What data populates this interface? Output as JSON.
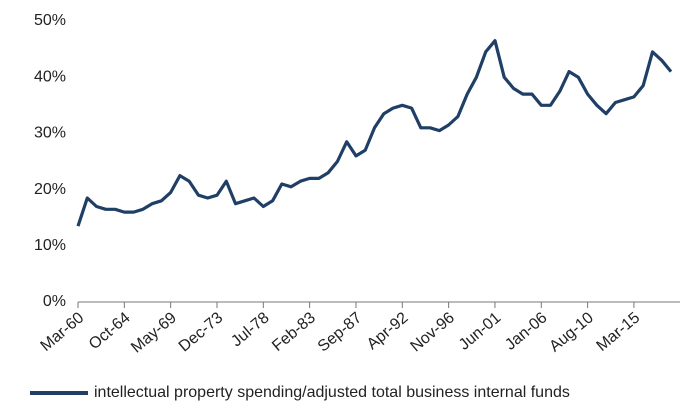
{
  "chart_data": {
    "type": "line",
    "categories": [
      "Mar-60",
      null,
      null,
      null,
      null,
      "Oct-64",
      null,
      null,
      null,
      null,
      "May-69",
      null,
      null,
      null,
      null,
      "Dec-73",
      null,
      null,
      null,
      null,
      "Jul-78",
      null,
      null,
      null,
      null,
      "Feb-83",
      null,
      null,
      null,
      null,
      "Sep-87",
      null,
      null,
      null,
      null,
      "Apr-92",
      null,
      null,
      null,
      null,
      "Nov-96",
      null,
      null,
      null,
      null,
      "Jun-01",
      null,
      null,
      null,
      null,
      "Jan-06",
      null,
      null,
      null,
      null,
      "Aug-10",
      null,
      null,
      null,
      null,
      "Mar-15",
      null,
      null,
      null,
      null
    ],
    "series": [
      {
        "name": "intellectual property spending/adjusted total business internal funds",
        "color": "#1f3f66",
        "values": [
          13.5,
          18.5,
          17,
          16.5,
          16.5,
          16,
          16,
          16.5,
          17.5,
          18,
          19.5,
          22.5,
          21.5,
          19,
          18.5,
          19,
          21.5,
          17.5,
          18,
          18.5,
          17,
          18,
          21,
          20.5,
          21.5,
          22,
          22,
          23,
          25,
          28.5,
          26,
          27,
          31,
          33.5,
          34.5,
          35,
          34.5,
          31,
          31,
          30.5,
          31.5,
          33,
          37,
          40,
          44.5,
          46.5,
          40,
          38,
          37,
          37,
          35,
          35,
          37.5,
          41,
          40,
          37,
          35,
          33.5,
          35.5,
          36,
          36.5,
          38.5,
          44.5,
          43,
          41
        ]
      }
    ],
    "ylim": [
      0,
      50
    ],
    "yticks": [
      {
        "value": 0,
        "label": "0%"
      },
      {
        "value": 10,
        "label": "10%"
      },
      {
        "value": 20,
        "label": "20%"
      },
      {
        "value": 30,
        "label": "30%"
      },
      {
        "value": 40,
        "label": "40%"
      },
      {
        "value": 50,
        "label": "50%"
      }
    ],
    "grid": false,
    "legend": "bottom"
  }
}
